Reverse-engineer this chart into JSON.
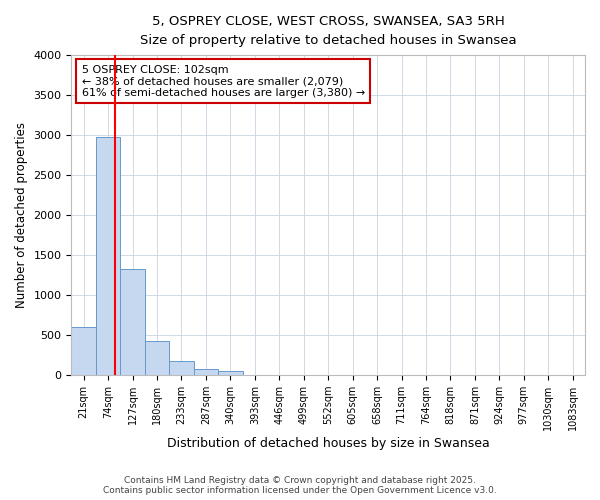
{
  "title1": "5, OSPREY CLOSE, WEST CROSS, SWANSEA, SA3 5RH",
  "title2": "Size of property relative to detached houses in Swansea",
  "xlabel": "Distribution of detached houses by size in Swansea",
  "ylabel": "Number of detached properties",
  "categories": [
    "21sqm",
    "74sqm",
    "127sqm",
    "180sqm",
    "233sqm",
    "287sqm",
    "340sqm",
    "393sqm",
    "446sqm",
    "499sqm",
    "552sqm",
    "605sqm",
    "658sqm",
    "711sqm",
    "764sqm",
    "818sqm",
    "871sqm",
    "924sqm",
    "977sqm",
    "1030sqm",
    "1083sqm"
  ],
  "values": [
    600,
    2980,
    1330,
    420,
    170,
    80,
    50,
    0,
    0,
    0,
    0,
    0,
    0,
    0,
    0,
    0,
    0,
    0,
    0,
    0,
    0
  ],
  "bar_color": "#c5d8f0",
  "bar_edge_color": "#6699cc",
  "grid_color": "#c8d4e0",
  "background_color": "#ffffff",
  "fig_background_color": "#ffffff",
  "red_line_x": 1.3,
  "annotation_text": "5 OSPREY CLOSE: 102sqm\n← 38% of detached houses are smaller (2,079)\n61% of semi-detached houses are larger (3,380) →",
  "annotation_box_color": "#ffffff",
  "annotation_box_edge": "#cc0000",
  "ylim": [
    0,
    4000
  ],
  "yticks": [
    0,
    500,
    1000,
    1500,
    2000,
    2500,
    3000,
    3500,
    4000
  ],
  "footer1": "Contains HM Land Registry data © Crown copyright and database right 2025.",
  "footer2": "Contains public sector information licensed under the Open Government Licence v3.0."
}
